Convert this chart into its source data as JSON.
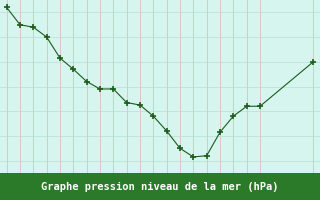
{
  "x": [
    0,
    1,
    2,
    3,
    4,
    5,
    6,
    7,
    8,
    9,
    10,
    11,
    12,
    13,
    14,
    15,
    16,
    17,
    18,
    19,
    23
  ],
  "y": [
    1017.2,
    1016.5,
    1016.4,
    1016.0,
    1015.15,
    1014.7,
    1014.2,
    1013.9,
    1013.9,
    1013.35,
    1013.25,
    1012.8,
    1012.2,
    1011.5,
    1011.15,
    1011.2,
    1012.15,
    1012.8,
    1013.2,
    1013.2,
    1015.0
  ],
  "xlim": [
    -0.5,
    23.5
  ],
  "ylim": [
    1010.5,
    1017.5
  ],
  "yticks": [
    1011,
    1012,
    1013,
    1014,
    1015,
    1016,
    1017
  ],
  "xticks": [
    0,
    1,
    2,
    3,
    4,
    5,
    6,
    7,
    8,
    9,
    10,
    11,
    12,
    13,
    14,
    15,
    16,
    17,
    18,
    19,
    23
  ],
  "xlabel": "Graphe pression niveau de la mer (hPa)",
  "line_color": "#1a5c1a",
  "marker": "+",
  "bg_color": "#d6f5ef",
  "vgrid_color": "#e8b0b0",
  "hgrid_color": "#b8ddd8",
  "label_bg_color": "#2a7a2a",
  "label_text_color": "#ffffff",
  "tick_fontsize": 6.0,
  "xlabel_fontsize": 7.5,
  "ylabel_right": true
}
